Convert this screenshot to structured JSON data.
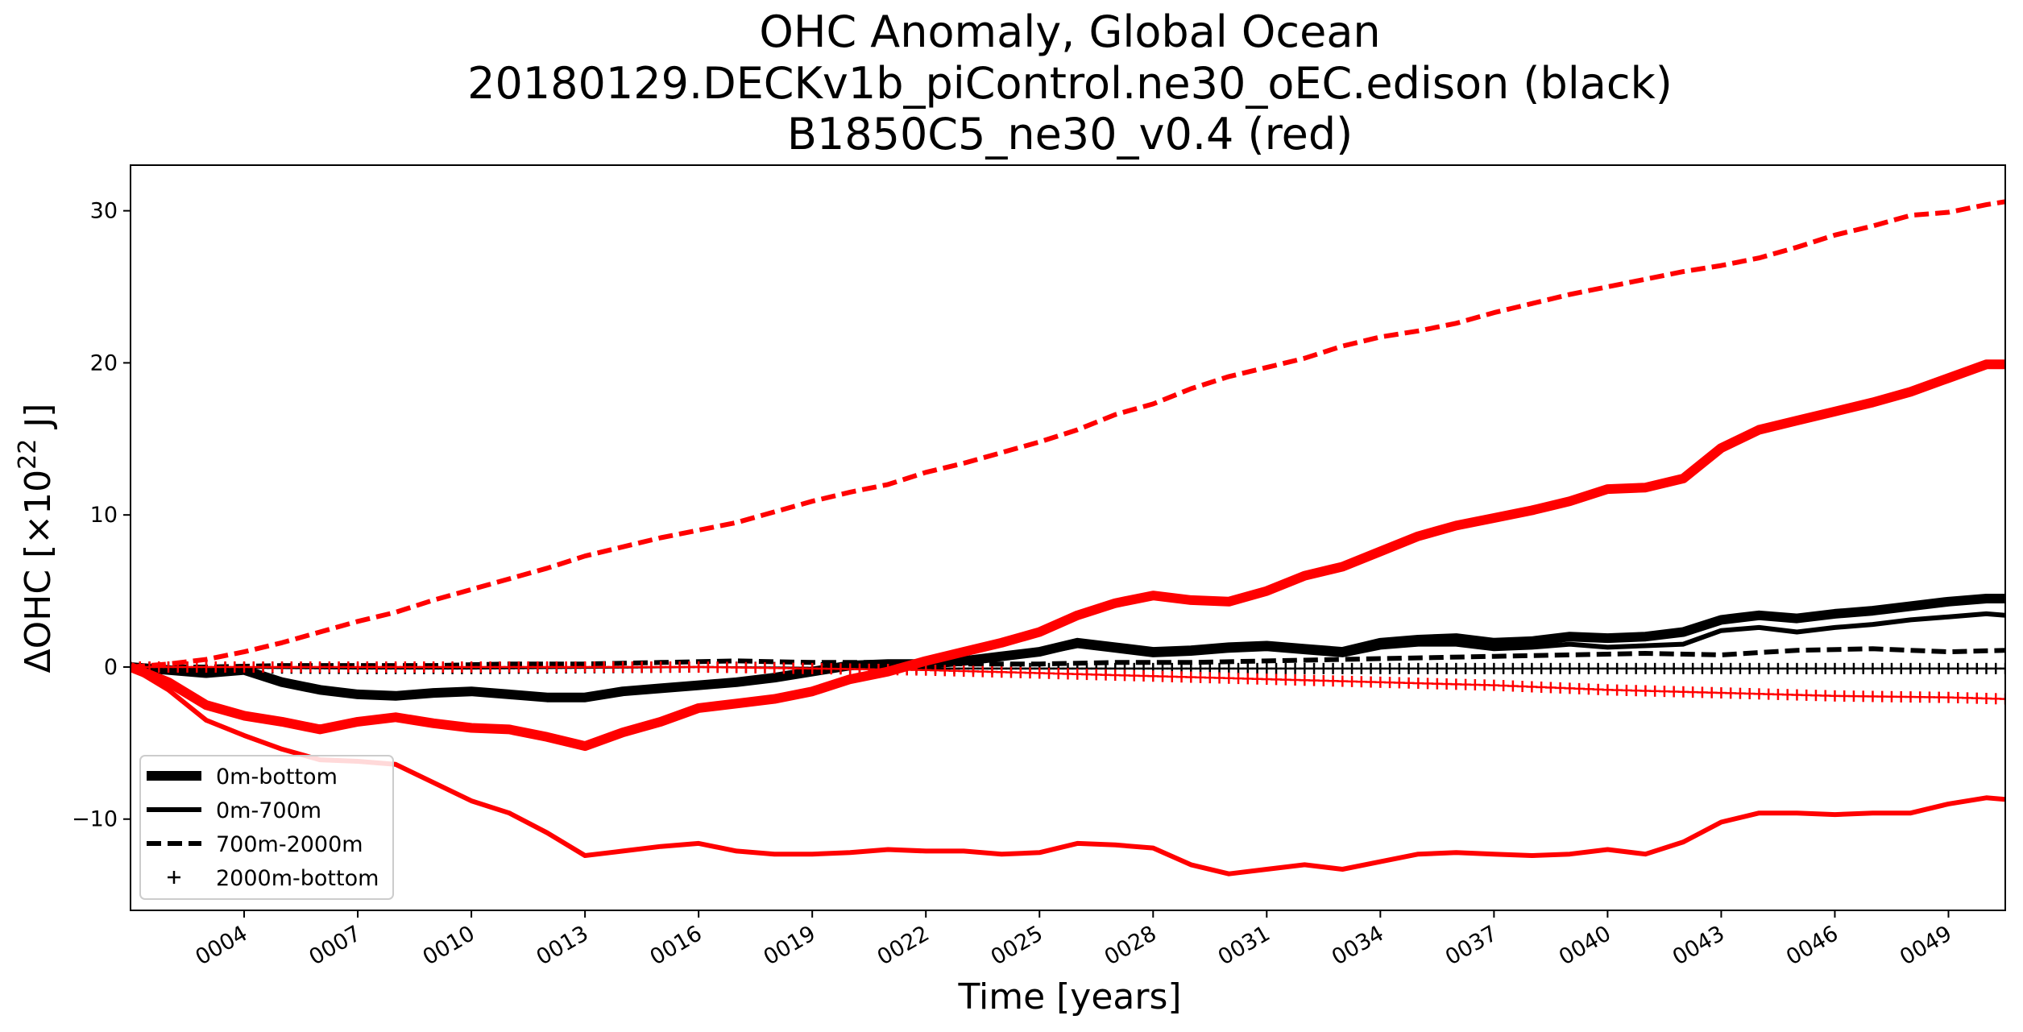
{
  "chart_data": {
    "type": "line",
    "title": [
      "OHC Anomaly, Global Ocean",
      "20180129.DECKv1b_piControl.ne30_oEC.edison (black)",
      "B1850C5_ne30_v0.4 (red)"
    ],
    "xlabel": "Time [years]",
    "ylabel_prefix": "ΔOHC [×10",
    "ylabel_exponent": "22",
    "ylabel_suffix": " J]",
    "xlim": [
      1,
      50.5
    ],
    "ylim": [
      -16,
      33
    ],
    "x_ticks": [
      4,
      7,
      10,
      13,
      16,
      19,
      22,
      25,
      28,
      31,
      34,
      37,
      40,
      43,
      46,
      49
    ],
    "x_tick_labels": [
      "0004",
      "0007",
      "0010",
      "0013",
      "0016",
      "0019",
      "0022",
      "0025",
      "0028",
      "0031",
      "0034",
      "0037",
      "0040",
      "0043",
      "0046",
      "0049"
    ],
    "y_ticks": [
      -10,
      0,
      10,
      20,
      30
    ],
    "y_tick_labels": [
      "−10",
      "0",
      "10",
      "20",
      "30"
    ],
    "grid": false,
    "legend_position": "lower-left",
    "legend": [
      {
        "label": "0m-bottom",
        "style": "thick"
      },
      {
        "label": "0m-700m",
        "style": "solid"
      },
      {
        "label": "700m-2000m",
        "style": "dashed"
      },
      {
        "label": "2000m-bottom",
        "style": "plus"
      }
    ],
    "colors": {
      "black": "#000000",
      "red": "#ff0000"
    },
    "series": [
      {
        "run": "black",
        "style": "thick",
        "label": "0m-bottom",
        "x": [
          1,
          2,
          3,
          4,
          5,
          6,
          7,
          8,
          9,
          10,
          11,
          12,
          13,
          14,
          15,
          16,
          17,
          18,
          19,
          20,
          21,
          22,
          23,
          24,
          25,
          26,
          27,
          28,
          29,
          30,
          31,
          32,
          33,
          34,
          35,
          36,
          37,
          38,
          39,
          40,
          41,
          42,
          43,
          44,
          45,
          46,
          47,
          48,
          49,
          50,
          50.5
        ],
        "y": [
          0,
          -0.2,
          -0.4,
          -0.2,
          -1.0,
          -1.5,
          -1.8,
          -1.9,
          -1.7,
          -1.6,
          -1.8,
          -2.0,
          -2.0,
          -1.6,
          -1.4,
          -1.2,
          -1.0,
          -0.7,
          -0.3,
          0.1,
          0.2,
          0.2,
          0.4,
          0.7,
          1.0,
          1.6,
          1.3,
          1.0,
          1.1,
          1.3,
          1.4,
          1.2,
          1.0,
          1.6,
          1.8,
          1.9,
          1.6,
          1.7,
          2.0,
          1.9,
          2.0,
          2.3,
          3.1,
          3.4,
          3.2,
          3.5,
          3.7,
          4.0,
          4.3,
          4.5,
          4.5
        ]
      },
      {
        "run": "black",
        "style": "solid",
        "label": "0m-700m",
        "x": [
          1,
          2,
          3,
          4,
          5,
          6,
          7,
          8,
          9,
          10,
          11,
          12,
          13,
          14,
          15,
          16,
          17,
          18,
          19,
          20,
          21,
          22,
          23,
          24,
          25,
          26,
          27,
          28,
          29,
          30,
          31,
          32,
          33,
          34,
          35,
          36,
          37,
          38,
          39,
          40,
          41,
          42,
          43,
          44,
          45,
          46,
          47,
          48,
          49,
          50,
          50.5
        ],
        "y": [
          0,
          -0.2,
          -0.4,
          -0.3,
          -0.9,
          -1.4,
          -1.7,
          -1.8,
          -1.6,
          -1.6,
          -1.8,
          -1.9,
          -1.9,
          -1.6,
          -1.5,
          -1.3,
          -1.1,
          -0.8,
          -0.4,
          0.0,
          0.1,
          0.0,
          0.3,
          0.6,
          0.9,
          1.4,
          1.1,
          0.8,
          0.9,
          1.1,
          1.2,
          1.0,
          0.8,
          1.3,
          1.5,
          1.5,
          1.2,
          1.3,
          1.5,
          1.3,
          1.4,
          1.5,
          2.4,
          2.6,
          2.3,
          2.6,
          2.8,
          3.1,
          3.3,
          3.5,
          3.4
        ]
      },
      {
        "run": "black",
        "style": "dashed",
        "label": "700m-2000m",
        "x": [
          1,
          3,
          5,
          7,
          9,
          11,
          13,
          15,
          17,
          19,
          21,
          23,
          25,
          27,
          29,
          31,
          33,
          35,
          37,
          39,
          41,
          43,
          45,
          47,
          49,
          50.5
        ],
        "y": [
          0,
          0.0,
          0.1,
          0.1,
          0.1,
          0.2,
          0.2,
          0.3,
          0.4,
          0.3,
          0.3,
          0.2,
          0.2,
          0.3,
          0.3,
          0.4,
          0.5,
          0.6,
          0.7,
          0.8,
          0.9,
          0.8,
          1.1,
          1.2,
          1.0,
          1.1
        ]
      },
      {
        "run": "black",
        "style": "plus",
        "label": "2000m-bottom",
        "x": [
          1,
          4,
          7,
          10,
          13,
          16,
          19,
          22,
          25,
          28,
          31,
          34,
          37,
          40,
          43,
          46,
          49,
          50.5
        ],
        "y": [
          0,
          -0.05,
          -0.1,
          -0.1,
          -0.05,
          0.0,
          -0.05,
          -0.1,
          -0.1,
          -0.1,
          -0.1,
          -0.1,
          -0.1,
          -0.1,
          -0.1,
          -0.1,
          -0.1,
          -0.1
        ]
      },
      {
        "run": "red",
        "style": "thick",
        "label": "0m-bottom",
        "x": [
          1,
          2,
          3,
          4,
          5,
          6,
          7,
          8,
          9,
          10,
          11,
          12,
          13,
          14,
          15,
          16,
          17,
          18,
          19,
          20,
          21,
          22,
          23,
          24,
          25,
          26,
          27,
          28,
          29,
          30,
          31,
          32,
          33,
          34,
          35,
          36,
          37,
          38,
          39,
          40,
          41,
          42,
          43,
          44,
          45,
          46,
          47,
          48,
          49,
          50,
          50.5
        ],
        "y": [
          0,
          -1.0,
          -2.5,
          -3.2,
          -3.6,
          -4.1,
          -3.6,
          -3.3,
          -3.7,
          -4.0,
          -4.1,
          -4.6,
          -5.2,
          -4.3,
          -3.6,
          -2.7,
          -2.4,
          -2.1,
          -1.6,
          -0.8,
          -0.3,
          0.4,
          1.0,
          1.6,
          2.3,
          3.4,
          4.2,
          4.7,
          4.4,
          4.3,
          5.0,
          6.0,
          6.6,
          7.6,
          8.6,
          9.3,
          9.8,
          10.3,
          10.9,
          11.7,
          11.8,
          12.4,
          14.4,
          15.6,
          16.2,
          16.8,
          17.4,
          18.1,
          19.0,
          19.9,
          19.9
        ]
      },
      {
        "run": "red",
        "style": "solid",
        "label": "0m-700m",
        "x": [
          1,
          2,
          3,
          4,
          5,
          6,
          7,
          8,
          9,
          10,
          11,
          12,
          13,
          14,
          15,
          16,
          17,
          18,
          19,
          20,
          21,
          22,
          23,
          24,
          25,
          26,
          27,
          28,
          29,
          30,
          31,
          32,
          33,
          34,
          35,
          36,
          37,
          38,
          39,
          40,
          41,
          42,
          43,
          44,
          45,
          46,
          47,
          48,
          49,
          50,
          50.5
        ],
        "y": [
          0,
          -1.5,
          -3.5,
          -4.5,
          -5.4,
          -6.1,
          -6.2,
          -6.4,
          -7.6,
          -8.8,
          -9.6,
          -10.9,
          -12.4,
          -12.1,
          -11.8,
          -11.6,
          -12.1,
          -12.3,
          -12.3,
          -12.2,
          -12.0,
          -12.1,
          -12.1,
          -12.3,
          -12.2,
          -11.6,
          -11.7,
          -11.9,
          -13.0,
          -13.6,
          -13.3,
          -13.0,
          -13.3,
          -12.8,
          -12.3,
          -12.2,
          -12.3,
          -12.4,
          -12.3,
          -12.0,
          -12.3,
          -11.5,
          -10.2,
          -9.6,
          -9.6,
          -9.7,
          -9.6,
          -9.6,
          -9.0,
          -8.6,
          -8.7
        ]
      },
      {
        "run": "red",
        "style": "dashed",
        "label": "700m-2000m",
        "x": [
          1,
          2,
          3,
          4,
          5,
          6,
          7,
          8,
          9,
          10,
          11,
          12,
          13,
          14,
          15,
          16,
          17,
          18,
          19,
          20,
          21,
          22,
          23,
          24,
          25,
          26,
          27,
          28,
          29,
          30,
          31,
          32,
          33,
          34,
          35,
          36,
          37,
          38,
          39,
          40,
          41,
          42,
          43,
          44,
          45,
          46,
          47,
          48,
          49,
          50,
          50.5
        ],
        "y": [
          0,
          0.2,
          0.5,
          1.0,
          1.6,
          2.3,
          3.0,
          3.6,
          4.4,
          5.1,
          5.8,
          6.5,
          7.3,
          7.9,
          8.5,
          9.0,
          9.5,
          10.2,
          10.9,
          11.5,
          12.0,
          12.8,
          13.4,
          14.1,
          14.8,
          15.6,
          16.6,
          17.3,
          18.3,
          19.1,
          19.7,
          20.3,
          21.1,
          21.7,
          22.1,
          22.6,
          23.3,
          23.9,
          24.5,
          25.0,
          25.5,
          26.0,
          26.4,
          26.9,
          27.6,
          28.4,
          29.0,
          29.7,
          29.9,
          30.4,
          30.6
        ]
      },
      {
        "run": "red",
        "style": "plus",
        "label": "2000m-bottom",
        "x": [
          1,
          4,
          7,
          10,
          13,
          16,
          19,
          22,
          25,
          28,
          31,
          34,
          37,
          40,
          43,
          46,
          49,
          50.5
        ],
        "y": [
          0,
          0.0,
          0.0,
          0.0,
          0.0,
          0.0,
          -0.1,
          -0.2,
          -0.4,
          -0.6,
          -0.8,
          -1.0,
          -1.2,
          -1.5,
          -1.7,
          -1.9,
          -2.0,
          -2.1
        ]
      }
    ]
  }
}
